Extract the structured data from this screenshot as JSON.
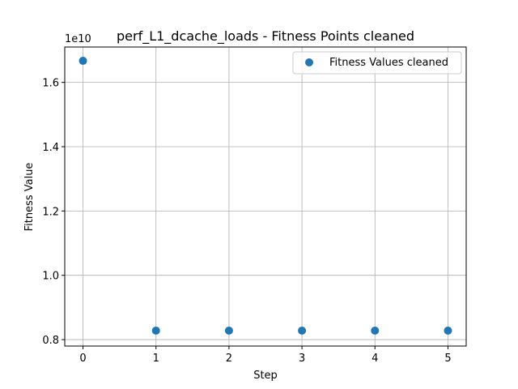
{
  "chart_data": {
    "type": "scatter",
    "title": "perf_L1_dcache_loads - Fitness Points cleaned",
    "xlabel": "Step",
    "ylabel": "Fitness Value",
    "y_offset_label": "1e10",
    "xlim": [
      -0.25,
      5.25
    ],
    "ylim": [
      0.78,
      1.71
    ],
    "x_ticks": [
      0,
      1,
      2,
      3,
      4,
      5
    ],
    "x_tick_labels": [
      "0",
      "1",
      "2",
      "3",
      "4",
      "5"
    ],
    "y_ticks": [
      0.8,
      1.0,
      1.2,
      1.4,
      1.6
    ],
    "y_tick_labels": [
      "0.8",
      "1.0",
      "1.2",
      "1.4",
      "1.6"
    ],
    "grid": true,
    "legend_placement": "top-right",
    "series": [
      {
        "name": "Fitness Values cleaned",
        "color": "#1f77b4",
        "x": [
          0,
          1,
          2,
          3,
          4,
          5
        ],
        "y": [
          1.667,
          0.828,
          0.828,
          0.828,
          0.828,
          0.828
        ]
      }
    ]
  }
}
